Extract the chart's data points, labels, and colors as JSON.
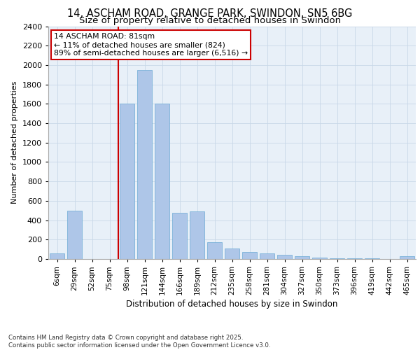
{
  "title1": "14, ASCHAM ROAD, GRANGE PARK, SWINDON, SN5 6BG",
  "title2": "Size of property relative to detached houses in Swindon",
  "xlabel": "Distribution of detached houses by size in Swindon",
  "ylabel": "Number of detached properties",
  "categories": [
    "6sqm",
    "29sqm",
    "52sqm",
    "75sqm",
    "98sqm",
    "121sqm",
    "144sqm",
    "166sqm",
    "189sqm",
    "212sqm",
    "235sqm",
    "258sqm",
    "281sqm",
    "304sqm",
    "327sqm",
    "350sqm",
    "373sqm",
    "396sqm",
    "419sqm",
    "442sqm",
    "465sqm"
  ],
  "values": [
    55,
    500,
    0,
    0,
    1600,
    1950,
    1600,
    480,
    490,
    175,
    110,
    70,
    55,
    45,
    30,
    15,
    10,
    8,
    5,
    3,
    30
  ],
  "bar_color": "#aec6e8",
  "bar_edge_color": "#6aaad4",
  "grid_color": "#c8d8e8",
  "bg_color": "#e8f0f8",
  "vline_color": "#cc0000",
  "vline_pos": 3.5,
  "annotation_title": "14 ASCHAM ROAD: 81sqm",
  "annotation_line1": "← 11% of detached houses are smaller (824)",
  "annotation_line2": "89% of semi-detached houses are larger (6,516) →",
  "annotation_box_color": "#ffffff",
  "annotation_box_edge": "#cc0000",
  "ylim": [
    0,
    2400
  ],
  "yticks": [
    0,
    200,
    400,
    600,
    800,
    1000,
    1200,
    1400,
    1600,
    1800,
    2000,
    2200,
    2400
  ],
  "footer1": "Contains HM Land Registry data © Crown copyright and database right 2025.",
  "footer2": "Contains public sector information licensed under the Open Government Licence v3.0.",
  "title_fontsize": 10.5,
  "subtitle_fontsize": 9.5
}
